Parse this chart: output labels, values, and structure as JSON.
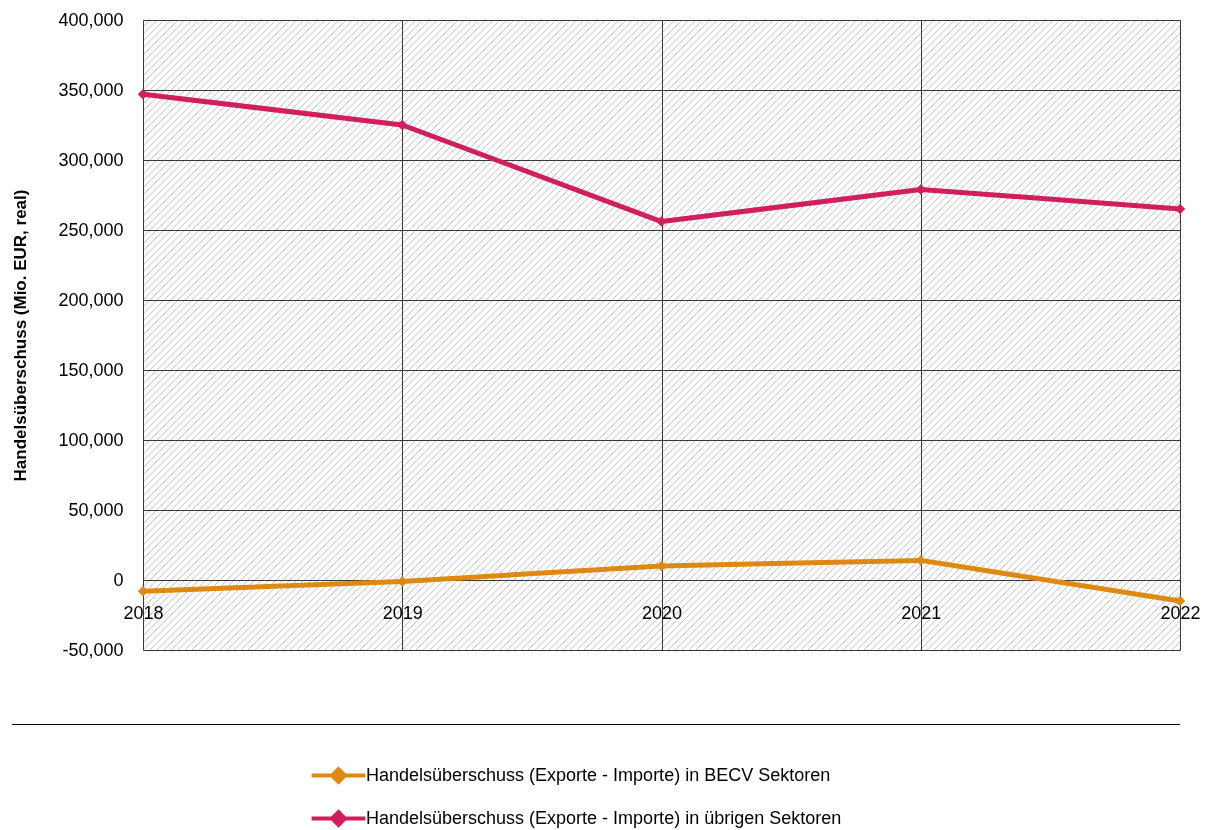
{
  "chart_data": {
    "type": "line",
    "ylabel": "Handelsüberschuss (Mio. EUR, real)",
    "categories": [
      "2018",
      "2019",
      "2020",
      "2021",
      "2022"
    ],
    "series": [
      {
        "name": "Handelsüberschuss (Exporte - Importe) in BECV Sektoren",
        "color": "#de8a12",
        "values": [
          -8000,
          -1000,
          10000,
          14000,
          -15000
        ]
      },
      {
        "name": "Handelsüberschuss (Exporte - Importe) in übrigen Sektoren",
        "color": "#d01e5f",
        "values": [
          347000,
          325000,
          256000,
          279000,
          265000
        ]
      }
    ],
    "ylim": [
      -50000,
      400000
    ],
    "yticks": [
      {
        "value": -50000,
        "label": "-50,000"
      },
      0,
      {
        "value": 50000,
        "label": "50,000"
      },
      {
        "value": 100000,
        "label": "100,000"
      },
      {
        "value": 150000,
        "label": "150,000"
      },
      {
        "value": 200000,
        "label": "200,000"
      },
      {
        "value": 250000,
        "label": "250,000"
      },
      {
        "value": 300000,
        "label": "300,000"
      },
      {
        "value": 350000,
        "label": "350,000"
      },
      {
        "value": 400000,
        "label": "400,000"
      }
    ],
    "grid": true,
    "legend": "bottom",
    "marker": "diamond",
    "line_style": "solid"
  }
}
